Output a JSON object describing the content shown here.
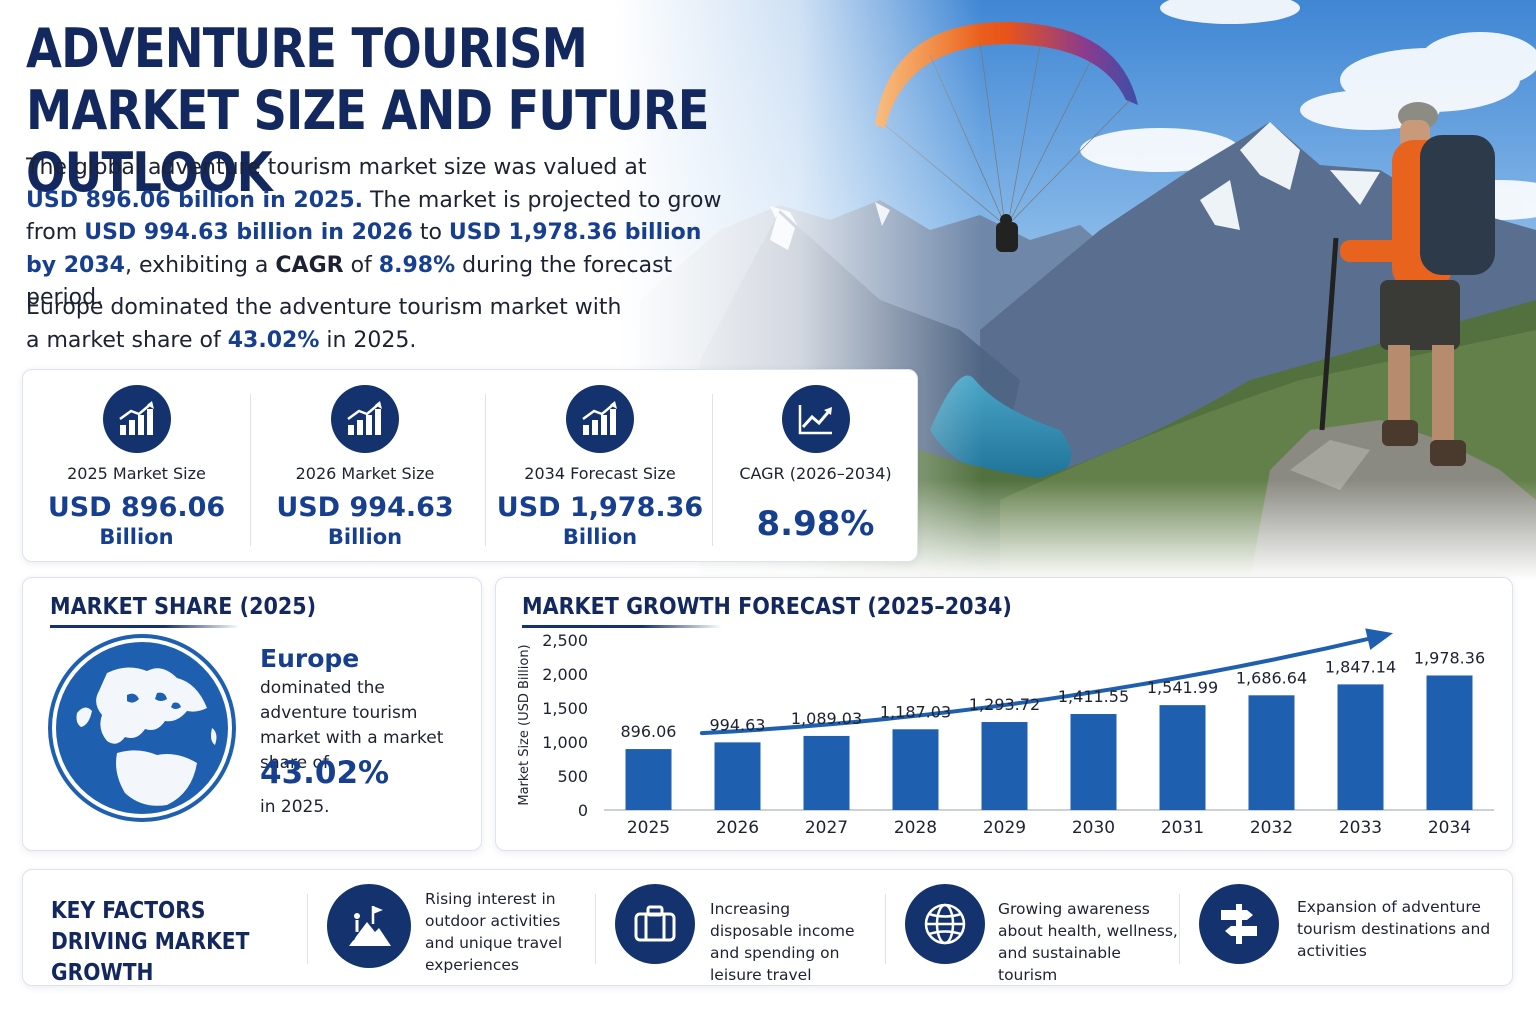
{
  "header": {
    "title": "ADVENTURE TOURISM MARKET SIZE AND FUTURE OUTLOOK"
  },
  "intro": {
    "p1_a": "The global adventure tourism market size was valued at",
    "p1_b": "USD 896.06 billion in 2025.",
    "p1_c": "The market is projected to grow",
    "p1_d": "from",
    "p1_e": "USD 994.63 billion in 2026",
    "p1_f": "to",
    "p1_g": "USD 1,978.36 billion",
    "p1_h": "by 2034",
    "p1_i": ", exhibiting a",
    "p1_j": "CAGR",
    "p1_k": "of",
    "p1_l": "8.98%",
    "p1_m": "during the forecast period.",
    "p2_a": "Europe dominated the adventure tourism market with",
    "p2_b": "a market share of",
    "p2_c": "43.02%",
    "p2_d": "in 2025."
  },
  "kpis": [
    {
      "label": "2025 Market Size",
      "value": "USD 896.06",
      "unit": "Billion",
      "icon": "bar-chart-up-icon"
    },
    {
      "label": "2026 Market Size",
      "value": "USD 994.63",
      "unit": "Billion",
      "icon": "bar-chart-up-icon"
    },
    {
      "label": "2034 Forecast Size",
      "value": "USD 1,978.36",
      "unit": "Billion",
      "icon": "bar-chart-up-icon"
    },
    {
      "label": "CAGR (2026–2034)",
      "value": "8.98%",
      "icon": "trend-line-icon"
    }
  ],
  "market_share": {
    "title": "MARKET SHARE (2025)",
    "region": "Europe",
    "description": "dominated the adventure tourism market with a market share of",
    "percent": "43.02%",
    "year_text": "in 2025.",
    "icon": "globe-europe-icon"
  },
  "growth": {
    "title": "MARKET GROWTH FORECAST (2025–2034)"
  },
  "chart_data": {
    "type": "bar",
    "title": "MARKET GROWTH FORECAST (2025–2034)",
    "xlabel": "",
    "ylabel": "Market Size (USD Billion)",
    "ylim": [
      0,
      2500
    ],
    "yticks": [
      "2,500",
      "2,000",
      "1,500",
      "1,000",
      "500",
      "0"
    ],
    "grid": false,
    "categories": [
      "2025",
      "2026",
      "2027",
      "2028",
      "2029",
      "2030",
      "2031",
      "2032",
      "2033",
      "2034"
    ],
    "values": [
      896.06,
      994.63,
      1089.03,
      1187.03,
      1293.72,
      1411.55,
      1541.99,
      1686.64,
      1847.14,
      1978.36
    ],
    "value_labels": [
      "896.06",
      "994.63",
      "1,089.03",
      "1,187.03",
      "1,293.72",
      "1,411.55",
      "1,541.99",
      "1,686.64",
      "1,847.14",
      "1,978.36"
    ],
    "colors": {
      "bar": "#1f5fb0",
      "arrow": "#1f5fb0"
    }
  },
  "factors": {
    "title": "KEY FACTORS DRIVING MARKET GROWTH",
    "items": [
      {
        "text": "Rising interest in outdoor activities and unique travel experiences",
        "icon": "hiker-mountain-flag-icon"
      },
      {
        "text": "Increasing disposable income and spending on leisure travel",
        "icon": "suitcase-icon"
      },
      {
        "text": "Growing awareness about health, wellness, and sustainable tourism",
        "icon": "globe-icon"
      },
      {
        "text": "Expansion of adventure tourism destinations and activities",
        "icon": "signpost-icon"
      }
    ]
  },
  "colors": {
    "navy": "#13326e",
    "accent_blue": "#163f8f",
    "bar_blue": "#1f5fb0",
    "paraglider": "#f06a1a"
  }
}
